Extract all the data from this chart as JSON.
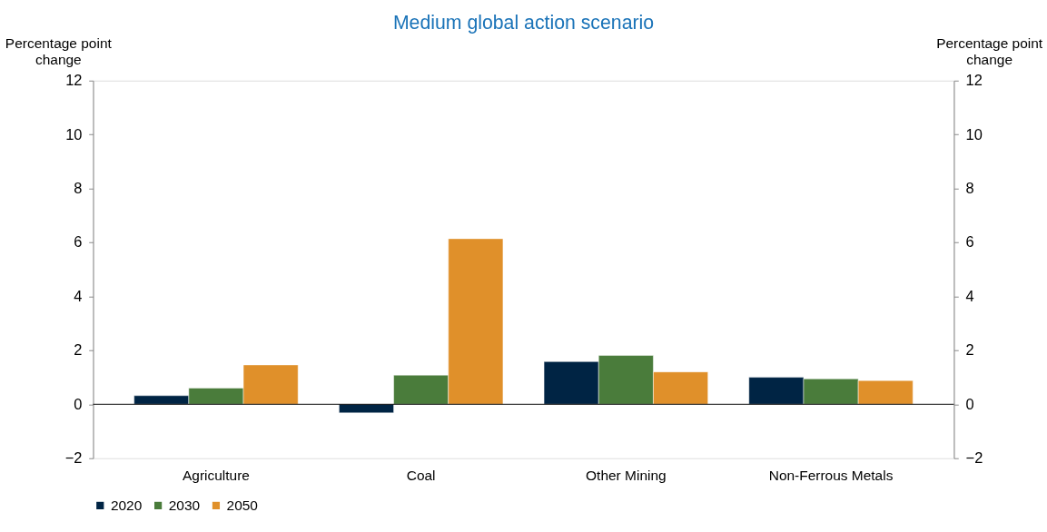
{
  "chart_data": {
    "type": "bar",
    "title": "Medium global action scenario",
    "ylabel": "Percentage point change",
    "y2label": "Percentage point change",
    "categories": [
      "Agriculture",
      "Coal",
      "Other Mining",
      "Non-Ferrous Metals"
    ],
    "series": [
      {
        "name": "2020",
        "color": "#002444",
        "values": [
          0.32,
          -0.32,
          1.58,
          1.0
        ]
      },
      {
        "name": "2030",
        "color": "#4a7c3b",
        "values": [
          0.6,
          1.08,
          1.81,
          0.94
        ]
      },
      {
        "name": "2050",
        "color": "#e0902a",
        "values": [
          1.46,
          6.14,
          1.2,
          0.88
        ]
      }
    ],
    "ylim": [
      -2,
      12
    ],
    "yticks": [
      -2,
      0,
      2,
      4,
      6,
      8,
      10,
      12
    ],
    "y2lim": [
      -2,
      12
    ],
    "y2ticks": [
      -2,
      0,
      2,
      4,
      6,
      8,
      10,
      12
    ],
    "ref_lines": [
      {
        "axis": "y",
        "value": 0,
        "color": "#000000"
      }
    ],
    "grid": false,
    "legend": "bottom"
  }
}
